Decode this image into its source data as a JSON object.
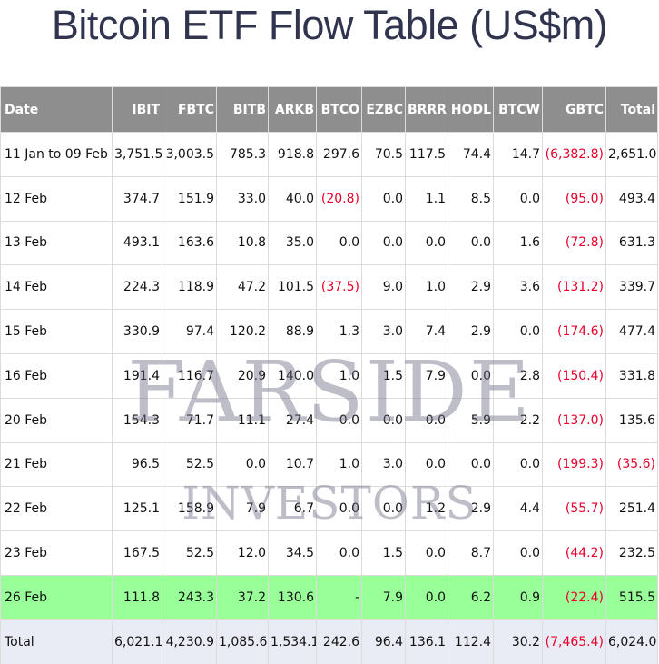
{
  "title": "Bitcoin ETF Flow Table (US$m)",
  "watermark": [
    "FARSIDE",
    "INVESTORS"
  ],
  "table": {
    "columns": [
      "Date",
      "IBIT",
      "FBTC",
      "BITB",
      "ARKB",
      "BTCO",
      "EZBC",
      "BRRR",
      "HODL",
      "BTCW",
      "GBTC",
      "Total"
    ],
    "rows": [
      [
        "11 Jan to 09 Feb",
        "3,751.5",
        "3,003.5",
        "785.3",
        "918.8",
        "297.6",
        "70.5",
        "117.5",
        "74.4",
        "14.7",
        "(6,382.8)",
        "2,651.0"
      ],
      [
        "12 Feb",
        "374.7",
        "151.9",
        "33.0",
        "40.0",
        "(20.8)",
        "0.0",
        "1.1",
        "8.5",
        "0.0",
        "(95.0)",
        "493.4"
      ],
      [
        "13 Feb",
        "493.1",
        "163.6",
        "10.8",
        "35.0",
        "0.0",
        "0.0",
        "0.0",
        "0.0",
        "1.6",
        "(72.8)",
        "631.3"
      ],
      [
        "14 Feb",
        "224.3",
        "118.9",
        "47.2",
        "101.5",
        "(37.5)",
        "9.0",
        "1.0",
        "2.9",
        "3.6",
        "(131.2)",
        "339.7"
      ],
      [
        "15 Feb",
        "330.9",
        "97.4",
        "120.2",
        "88.9",
        "1.3",
        "3.0",
        "7.4",
        "2.9",
        "0.0",
        "(174.6)",
        "477.4"
      ],
      [
        "16 Feb",
        "191.4",
        "116.7",
        "20.9",
        "140.0",
        "1.0",
        "1.5",
        "7.9",
        "0.0",
        "2.8",
        "(150.4)",
        "331.8"
      ],
      [
        "20 Feb",
        "154.3",
        "71.7",
        "11.1",
        "27.4",
        "0.0",
        "0.0",
        "0.0",
        "5.9",
        "2.2",
        "(137.0)",
        "135.6"
      ],
      [
        "21 Feb",
        "96.5",
        "52.5",
        "0.0",
        "10.7",
        "1.0",
        "3.0",
        "0.0",
        "0.0",
        "0.0",
        "(199.3)",
        "(35.6)"
      ],
      [
        "22 Feb",
        "125.1",
        "158.9",
        "7.9",
        "6.7",
        "0.0",
        "0.0",
        "1.2",
        "2.9",
        "4.4",
        "(55.7)",
        "251.4"
      ],
      [
        "23 Feb",
        "167.5",
        "52.5",
        "12.0",
        "34.5",
        "0.0",
        "1.5",
        "0.0",
        "8.7",
        "0.0",
        "(44.2)",
        "232.5"
      ],
      [
        "26 Feb",
        "111.8",
        "243.3",
        "37.2",
        "130.6",
        "-",
        "7.9",
        "0.0",
        "6.2",
        "0.9",
        "(22.4)",
        "515.5"
      ]
    ],
    "total": [
      "Total",
      "6,021.1",
      "4,230.9",
      "1,085.6",
      "1,534.1",
      "242.6",
      "96.4",
      "136.1",
      "112.4",
      "30.2",
      "(7,465.4)",
      "6,024.0"
    ]
  }
}
